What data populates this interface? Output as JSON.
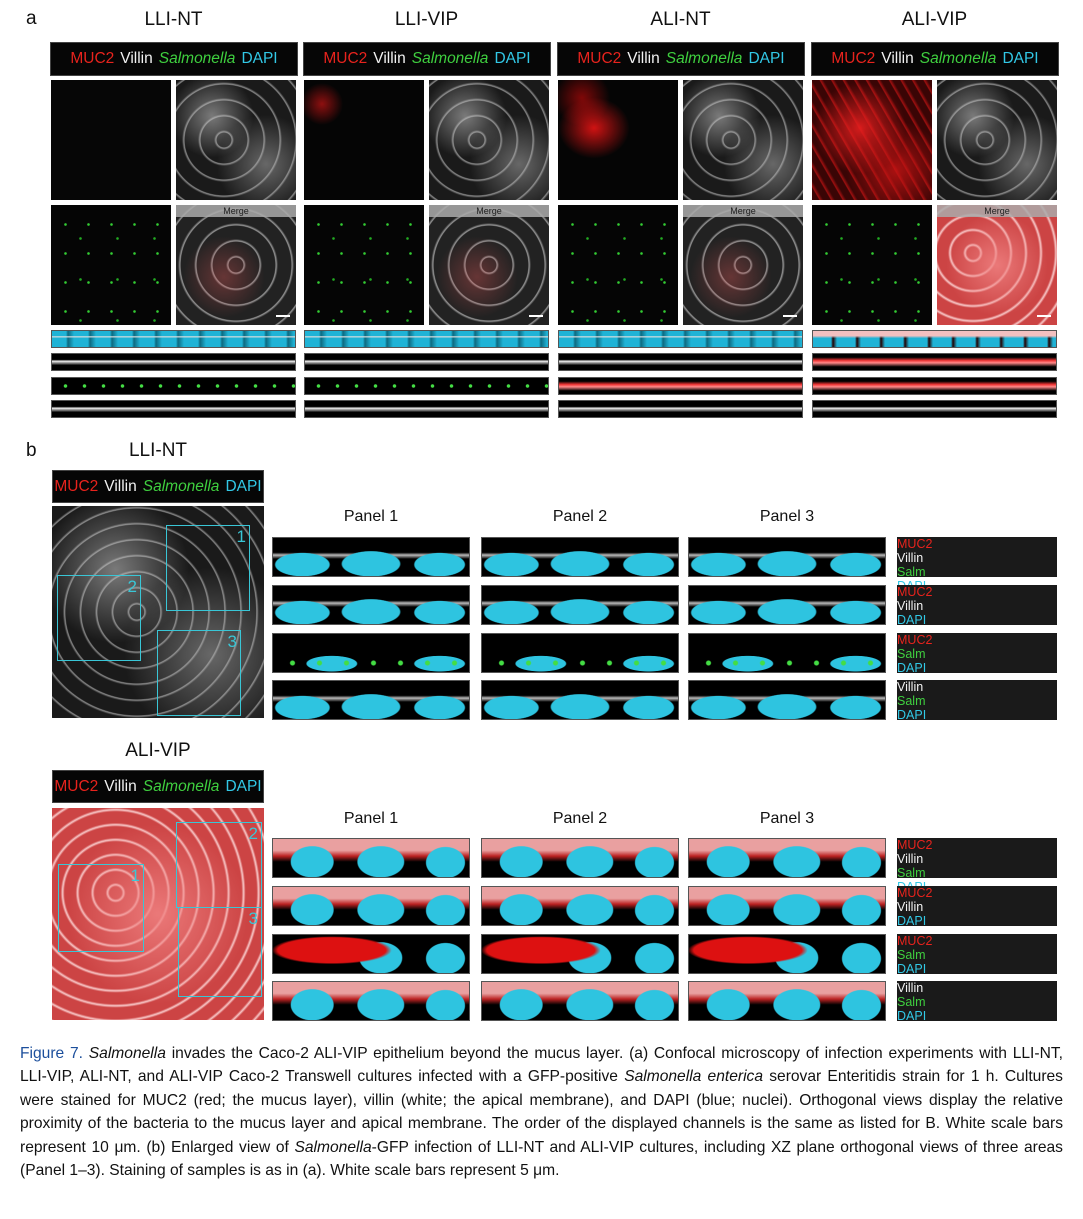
{
  "channels": [
    "MUC2",
    "Villin",
    "Salmonella",
    "DAPI"
  ],
  "panel_a": {
    "label": "a",
    "merge_label": "Merge",
    "columns": [
      "LLI-NT",
      "LLI-VIP",
      "ALI-NT",
      "ALI-VIP"
    ]
  },
  "panel_b": {
    "label": "b",
    "panel_titles": [
      "Panel 1",
      "Panel 2",
      "Panel 3"
    ],
    "row_labels": [
      [
        "MUC2",
        "Villin",
        "Salm",
        "DAPI"
      ],
      [
        "MUC2",
        "Villin",
        null,
        "DAPI"
      ],
      [
        "MUC2",
        null,
        "Salm",
        "DAPI"
      ],
      [
        null,
        "Villin",
        "Salm",
        "DAPI"
      ]
    ],
    "sections": [
      {
        "title": "LLI-NT",
        "regions": [
          "1",
          "2",
          "3"
        ]
      },
      {
        "title": "ALI-VIP",
        "regions": [
          "1",
          "2",
          "3"
        ]
      }
    ]
  },
  "caption": {
    "label": "Figure 7.",
    "segments": [
      {
        "text": " "
      },
      {
        "text": "Salmonella",
        "italic": true
      },
      {
        "text": " invades the Caco-2 ALI-VIP epithelium beyond the mucus layer. (a) Confocal microscopy of infection experiments with LLI-NT, LLI-VIP, ALI-NT, and ALI-VIP Caco-2 Transwell cultures infected with a GFP-positive "
      },
      {
        "text": "Salmonella enterica",
        "italic": true
      },
      {
        "text": " serovar Enteritidis strain for 1 h. Cultures were stained for MUC2 (red; the mucus layer), villin (white; the apical membrane), and DAPI (blue; nuclei). Orthogonal views display the relative proximity of the bacteria to the mucus layer and apical membrane. The order of the displayed channels is the same as listed for B. White scale bars represent 10 μm. (b) Enlarged view of "
      },
      {
        "text": "Salmonella",
        "italic": true
      },
      {
        "text": "-GFP infection of LLI-NT and ALI-VIP cultures, including XZ plane orthogonal views of three areas (Panel 1–3). Staining of samples is as in (a). White scale bars represent 5 μm."
      }
    ]
  }
}
